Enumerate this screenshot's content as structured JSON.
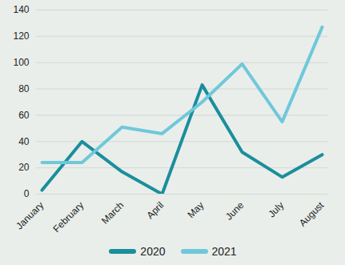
{
  "chart_data": {
    "type": "line",
    "categories": [
      "January",
      "February",
      "March",
      "April",
      "May",
      "June",
      "July",
      "August"
    ],
    "series": [
      {
        "name": "2020",
        "color": "#1b8e9c",
        "values": [
          3,
          40,
          17,
          0,
          83,
          32,
          13,
          30
        ]
      },
      {
        "name": "2021",
        "color": "#6fc8da",
        "values": [
          24,
          24,
          51,
          46,
          70,
          99,
          55,
          127
        ]
      }
    ],
    "ylim": [
      0,
      140
    ],
    "yticks": [
      0,
      20,
      40,
      60,
      80,
      100,
      120,
      140
    ],
    "grid": true,
    "legend": "bottom"
  }
}
